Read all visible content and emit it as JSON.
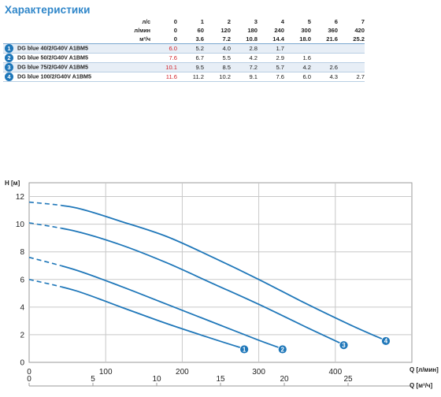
{
  "section_title": "Характеристики",
  "table": {
    "units": [
      "л/с",
      "л/мин",
      "м³/ч"
    ],
    "flow_ls": [
      "0",
      "1",
      "2",
      "3",
      "4",
      "5",
      "6",
      "7"
    ],
    "flow_lmin": [
      "0",
      "60",
      "120",
      "180",
      "240",
      "300",
      "360",
      "420"
    ],
    "flow_m3h": [
      "0",
      "3.6",
      "7.2",
      "10.8",
      "14.4",
      "18.0",
      "21.6",
      "25.2"
    ],
    "models": [
      {
        "num": "1",
        "name": "DG blue 40/2/G40V A1BM5",
        "heads": [
          "6.0",
          "5.2",
          "4.0",
          "2.8",
          "1.7",
          "",
          "",
          ""
        ]
      },
      {
        "num": "2",
        "name": "DG blue 50/2/G40V A1BM5",
        "heads": [
          "7.6",
          "6.7",
          "5.5",
          "4.2",
          "2.9",
          "1.6",
          "",
          ""
        ]
      },
      {
        "num": "3",
        "name": "DG blue 75/2/G40V A1BM5",
        "heads": [
          "10.1",
          "9.5",
          "8.5",
          "7.2",
          "5.7",
          "4.2",
          "2.6",
          ""
        ]
      },
      {
        "num": "4",
        "name": "DG blue 100/2/G40V A1BM5",
        "heads": [
          "11.6",
          "11.2",
          "10.2",
          "9.1",
          "7.6",
          "6.0",
          "4.3",
          "2.7"
        ]
      }
    ]
  },
  "chart_data": {
    "type": "line",
    "ylabel": "H [м]",
    "xlabel": "Q [л/мин]",
    "x2label": "Q [м³/ч]",
    "xlim": [
      0,
      500
    ],
    "ylim": [
      0,
      13
    ],
    "x_ticks": [
      "0",
      "100",
      "200",
      "300",
      "400"
    ],
    "x2_ticks": [
      "0",
      "5",
      "10",
      "15",
      "20",
      "25"
    ],
    "y_ticks": [
      "0",
      "2",
      "4",
      "6",
      "8",
      "10",
      "12"
    ],
    "grid": true,
    "series": [
      {
        "name": "1",
        "x": [
          0,
          60,
          120,
          180,
          240,
          280
        ],
        "y": [
          6.0,
          5.2,
          4.0,
          2.8,
          1.7,
          1.0
        ]
      },
      {
        "name": "2",
        "x": [
          0,
          60,
          120,
          180,
          240,
          300,
          330
        ],
        "y": [
          7.6,
          6.7,
          5.5,
          4.2,
          2.9,
          1.6,
          1.0
        ]
      },
      {
        "name": "3",
        "x": [
          0,
          60,
          120,
          180,
          240,
          300,
          360,
          410
        ],
        "y": [
          10.1,
          9.5,
          8.5,
          7.2,
          5.7,
          4.2,
          2.6,
          1.3
        ]
      },
      {
        "name": "4",
        "x": [
          0,
          60,
          120,
          180,
          240,
          300,
          360,
          420,
          465
        ],
        "y": [
          11.6,
          11.2,
          10.2,
          9.1,
          7.6,
          6.0,
          4.3,
          2.7,
          1.6
        ]
      }
    ],
    "colors": {
      "line": "#1f77b9",
      "grid": "#c8c8c8",
      "marker": "#1f77b9"
    }
  }
}
